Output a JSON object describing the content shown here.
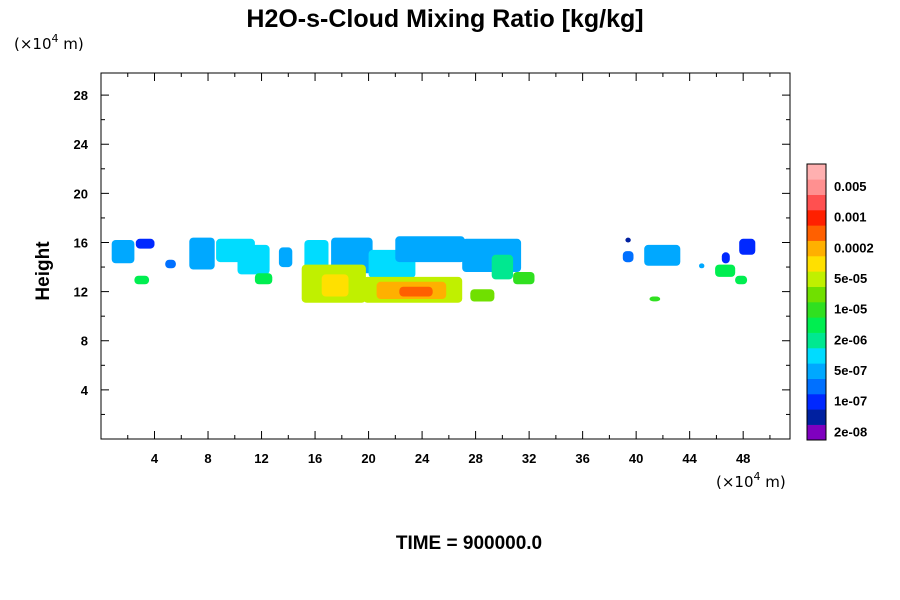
{
  "chart_data": {
    "type": "heatmap",
    "title": "H2O-s-Cloud Mixing Ratio [kg/kg]",
    "xlabel": "",
    "ylabel": "Height",
    "x_unit": "(×10",
    "x_unit_exp": "4",
    "x_unit_tail": " m)",
    "y_unit": "(×10",
    "y_unit_exp": "4",
    "y_unit_tail": " m)",
    "xlim": [
      0,
      51.5
    ],
    "ylim": [
      0,
      29.8
    ],
    "x_ticks": [
      4,
      8,
      12,
      16,
      20,
      24,
      28,
      32,
      36,
      40,
      44,
      48
    ],
    "y_ticks": [
      4,
      8,
      12,
      16,
      20,
      24,
      28
    ],
    "colorbar": {
      "levels": [
        {
          "color": "#7f00bf",
          "label": "2e-08"
        },
        {
          "color": "#0020a0",
          "label": ""
        },
        {
          "color": "#0028ff",
          "label": "1e-07"
        },
        {
          "color": "#0070ff",
          "label": ""
        },
        {
          "color": "#00a8ff",
          "label": "5e-07"
        },
        {
          "color": "#00dcff",
          "label": ""
        },
        {
          "color": "#00e890",
          "label": "2e-06"
        },
        {
          "color": "#00ee50",
          "label": ""
        },
        {
          "color": "#30e020",
          "label": "1e-05"
        },
        {
          "color": "#70e000",
          "label": ""
        },
        {
          "color": "#c0f000",
          "label": "5e-05"
        },
        {
          "color": "#ffe000",
          "label": ""
        },
        {
          "color": "#ffb000",
          "label": "0.0002"
        },
        {
          "color": "#ff6000",
          "label": ""
        },
        {
          "color": "#ff2000",
          "label": "0.001"
        },
        {
          "color": "#ff5050",
          "label": ""
        },
        {
          "color": "#ff9090",
          "label": "0.005"
        },
        {
          "color": "#ffb0b0",
          "label": ""
        }
      ]
    },
    "features": [
      {
        "x": [
          0.8,
          2.5
        ],
        "y": [
          14.3,
          16.2
        ],
        "level": 4
      },
      {
        "x": [
          2.6,
          4.0
        ],
        "y": [
          15.5,
          16.3
        ],
        "level": 2
      },
      {
        "x": [
          2.5,
          3.6
        ],
        "y": [
          12.6,
          13.3
        ],
        "level": 7
      },
      {
        "x": [
          4.8,
          5.6
        ],
        "y": [
          13.9,
          14.6
        ],
        "level": 3
      },
      {
        "x": [
          6.6,
          8.5
        ],
        "y": [
          13.8,
          16.4
        ],
        "level": 4
      },
      {
        "x": [
          8.6,
          11.5
        ],
        "y": [
          14.4,
          16.3
        ],
        "level": 5
      },
      {
        "x": [
          10.2,
          12.6
        ],
        "y": [
          13.4,
          15.8
        ],
        "level": 5
      },
      {
        "x": [
          11.5,
          12.8
        ],
        "y": [
          12.6,
          13.5
        ],
        "level": 7
      },
      {
        "x": [
          13.3,
          14.3
        ],
        "y": [
          14.0,
          15.6
        ],
        "level": 4
      },
      {
        "x": [
          15.2,
          17.0
        ],
        "y": [
          12.8,
          16.2
        ],
        "level": 5
      },
      {
        "x": [
          17.2,
          20.3
        ],
        "y": [
          13.5,
          16.4
        ],
        "level": 4
      },
      {
        "x": [
          15.0,
          19.8
        ],
        "y": [
          11.1,
          14.2
        ],
        "level": 10
      },
      {
        "x": [
          16.5,
          18.5
        ],
        "y": [
          11.6,
          13.4
        ],
        "level": 11
      },
      {
        "x": [
          20.0,
          23.5
        ],
        "y": [
          13.1,
          15.4
        ],
        "level": 5
      },
      {
        "x": [
          22.0,
          27.2
        ],
        "y": [
          14.4,
          16.5
        ],
        "level": 4
      },
      {
        "x": [
          19.6,
          27.0
        ],
        "y": [
          11.1,
          13.2
        ],
        "level": 10
      },
      {
        "x": [
          20.6,
          25.8
        ],
        "y": [
          11.4,
          12.8
        ],
        "level": 12
      },
      {
        "x": [
          22.3,
          24.8
        ],
        "y": [
          11.6,
          12.4
        ],
        "level": 13
      },
      {
        "x": [
          27.0,
          31.4
        ],
        "y": [
          13.6,
          16.3
        ],
        "level": 4
      },
      {
        "x": [
          29.2,
          30.8
        ],
        "y": [
          13.0,
          15.0
        ],
        "level": 6
      },
      {
        "x": [
          30.8,
          32.4
        ],
        "y": [
          12.6,
          13.6
        ],
        "level": 8
      },
      {
        "x": [
          27.6,
          29.4
        ],
        "y": [
          11.2,
          12.2
        ],
        "level": 9
      },
      {
        "x": [
          39.0,
          39.8
        ],
        "y": [
          14.4,
          15.3
        ],
        "level": 3
      },
      {
        "x": [
          39.2,
          39.6
        ],
        "y": [
          16.0,
          16.4
        ],
        "level": 1
      },
      {
        "x": [
          40.6,
          43.3
        ],
        "y": [
          14.1,
          15.8
        ],
        "level": 4
      },
      {
        "x": [
          41.0,
          41.8
        ],
        "y": [
          11.2,
          11.6
        ],
        "level": 8
      },
      {
        "x": [
          44.7,
          45.1
        ],
        "y": [
          13.9,
          14.3
        ],
        "level": 4
      },
      {
        "x": [
          45.9,
          47.4
        ],
        "y": [
          13.2,
          14.2
        ],
        "level": 7
      },
      {
        "x": [
          47.4,
          48.3
        ],
        "y": [
          12.6,
          13.3
        ],
        "level": 7
      },
      {
        "x": [
          46.4,
          47.0
        ],
        "y": [
          14.3,
          15.2
        ],
        "level": 2
      },
      {
        "x": [
          47.7,
          48.9
        ],
        "y": [
          15.0,
          16.3
        ],
        "level": 2
      }
    ]
  },
  "footer": {
    "time_label": "TIME = 900000.0"
  }
}
